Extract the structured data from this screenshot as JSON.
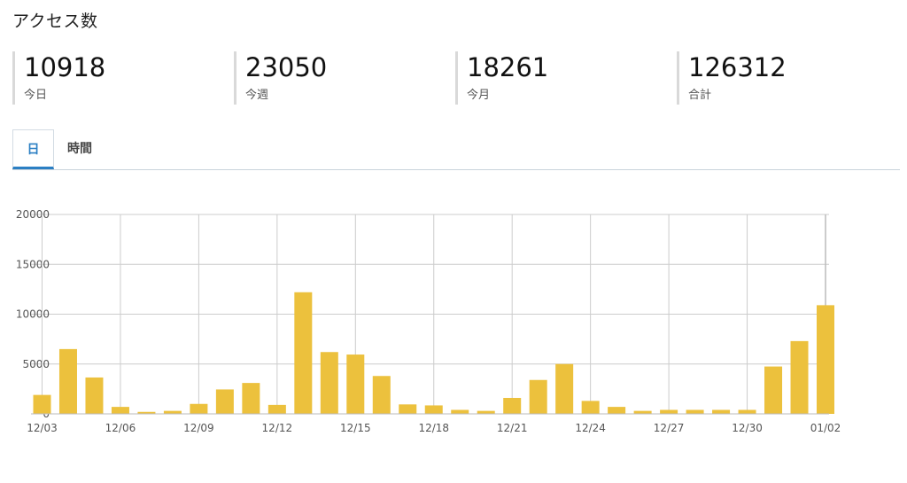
{
  "header": {
    "title": "アクセス数"
  },
  "stats": [
    {
      "value": "10918",
      "label": "今日"
    },
    {
      "value": "23050",
      "label": "今週"
    },
    {
      "value": "18261",
      "label": "今月"
    },
    {
      "value": "126312",
      "label": "合計"
    }
  ],
  "tabs": [
    {
      "label": "日",
      "active": true
    },
    {
      "label": "時間",
      "active": false
    }
  ],
  "colors": {
    "bar": "#ecc13d",
    "tab_active": "#2b7fc3",
    "grid": "#cccccc"
  },
  "chart_data": {
    "type": "bar",
    "categories": [
      "12/03",
      "12/04",
      "12/05",
      "12/06",
      "12/07",
      "12/08",
      "12/09",
      "12/10",
      "12/11",
      "12/12",
      "12/13",
      "12/14",
      "12/15",
      "12/16",
      "12/17",
      "12/18",
      "12/19",
      "12/20",
      "12/21",
      "12/22",
      "12/23",
      "12/24",
      "12/25",
      "12/26",
      "12/27",
      "12/28",
      "12/29",
      "12/30",
      "12/31",
      "01/01",
      "01/02"
    ],
    "values": [
      1900,
      6500,
      3650,
      700,
      200,
      300,
      1000,
      2450,
      3100,
      900,
      12200,
      6200,
      5950,
      3800,
      950,
      850,
      400,
      300,
      1600,
      3400,
      5000,
      1300,
      700,
      300,
      400,
      400,
      400,
      400,
      4750,
      7300,
      10900
    ],
    "x_tick_labels": [
      "12/03",
      "12/06",
      "12/09",
      "12/12",
      "12/15",
      "12/18",
      "12/21",
      "12/24",
      "12/27",
      "12/30",
      "01/02"
    ],
    "y_ticks": [
      0,
      5000,
      10000,
      15000,
      20000
    ],
    "ylim": [
      0,
      20000
    ],
    "grid": true,
    "title": "",
    "xlabel": "",
    "ylabel": ""
  }
}
